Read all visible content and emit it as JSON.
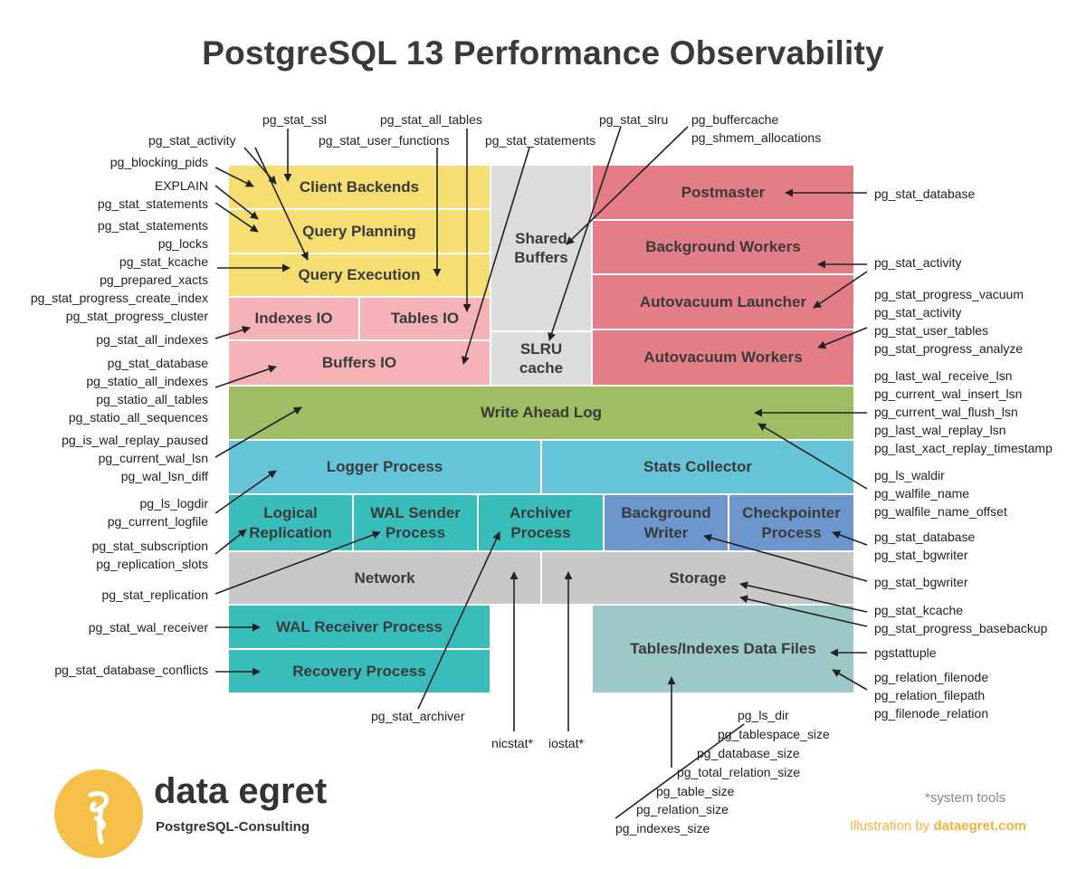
{
  "title": "PostgreSQL 13 Performance Observability",
  "colors": {
    "yellow": "#f6de73",
    "pink": "#f5b3b8",
    "light_gray": "#dcdcdc",
    "red": "#e47e86",
    "green": "#9dbe63",
    "light_blue": "#66c4d8",
    "teal": "#39bdbb",
    "blue": "#6d97cc",
    "gray": "#c8c8c8",
    "sea": "#9cc8c8",
    "logo": "#f5c04a",
    "credit": "#f0b43c"
  },
  "components": {
    "client_backends": "Client Backends",
    "query_planning": "Query Planning",
    "query_execution": "Query Execution",
    "indexes_io": "Indexes IO",
    "tables_io": "Tables IO",
    "buffers_io": "Buffers IO",
    "shared_buffers": "Shared\nBuffers",
    "slru_cache": "SLRU\ncache",
    "postmaster": "Postmaster",
    "background_workers": "Background Workers",
    "autovacuum_launcher": "Autovacuum Launcher",
    "autovacuum_workers": "Autovacuum Workers",
    "write_ahead_log": "Write Ahead Log",
    "logger_process": "Logger Process",
    "stats_collector": "Stats Collector",
    "logical_replication": "Logical\nReplication",
    "wal_sender_process": "WAL Sender\nProcess",
    "archiver_process": "Archiver\nProcess",
    "background_writer": "Background\nWriter",
    "checkpointer_process": "Checkpointer\nProcess",
    "network": "Network",
    "storage": "Storage",
    "wal_receiver_process": "WAL Receiver Process",
    "recovery_process": "Recovery Process",
    "data_files": "Tables/Indexes Data Files"
  },
  "labels": {
    "top": {
      "pg_stat_ssl": "pg_stat_ssl",
      "pg_stat_all_tables": "pg_stat_all_tables",
      "pg_stat_user_functions": "pg_stat_user_functions",
      "pg_stat_statements": "pg_stat_statements",
      "pg_stat_slru": "pg_stat_slru",
      "pg_buffercache": "pg_buffercache",
      "pg_shmem_allocations": "pg_shmem_allocations",
      "pg_stat_activity": "pg_stat_activity"
    },
    "left": {
      "pg_blocking_pids": "pg_blocking_pids",
      "explain": "EXPLAIN",
      "pg_stat_statements_a": "pg_stat_statements",
      "pg_stat_statements_b": "pg_stat_statements",
      "pg_locks": "pg_locks",
      "pg_stat_kcache": "pg_stat_kcache",
      "pg_prepared_xacts": "pg_prepared_xacts",
      "pg_stat_progress_create_index": "pg_stat_progress_create_index",
      "pg_stat_progress_cluster": "pg_stat_progress_cluster",
      "pg_stat_all_indexes": "pg_stat_all_indexes",
      "pg_stat_database": "pg_stat_database",
      "pg_statio_all_indexes": "pg_statio_all_indexes",
      "pg_statio_all_tables": "pg_statio_all_tables",
      "pg_statio_all_sequences": "pg_statio_all_sequences",
      "pg_is_wal_replay_paused": "pg_is_wal_replay_paused",
      "pg_current_wal_lsn": "pg_current_wal_lsn",
      "pg_wal_lsn_diff": "pg_wal_lsn_diff",
      "pg_ls_logdir": "pg_ls_logdir",
      "pg_current_logfile": "pg_current_logfile",
      "pg_stat_subscription": "pg_stat_subscription",
      "pg_replication_slots": "pg_replication_slots",
      "pg_stat_replication": "pg_stat_replication",
      "pg_stat_wal_receiver": "pg_stat_wal_receiver",
      "pg_stat_database_conflicts": "pg_stat_database_conflicts"
    },
    "right": {
      "pg_stat_database": "pg_stat_database",
      "pg_stat_activity": "pg_stat_activity",
      "pg_stat_progress_vacuum": "pg_stat_progress_vacuum",
      "pg_stat_activity_2": "pg_stat_activity",
      "pg_stat_user_tables": "pg_stat_user_tables",
      "pg_stat_progress_analyze": "pg_stat_progress_analyze",
      "pg_last_wal_receive_lsn": "pg_last_wal_receive_lsn",
      "pg_current_wal_insert_lsn": "pg_current_wal_insert_lsn",
      "pg_current_wal_flush_lsn": "pg_current_wal_flush_lsn",
      "pg_last_wal_replay_lsn": "pg_last_wal_replay_lsn",
      "pg_last_xact_replay_timestamp": "pg_last_xact_replay_timestamp",
      "pg_ls_waldir": "pg_ls_waldir",
      "pg_walfile_name": "pg_walfile_name",
      "pg_walfile_name_offset": "pg_walfile_name_offset",
      "pg_stat_database_2": "pg_stat_database",
      "pg_stat_bgwriter": "pg_stat_bgwriter",
      "pg_stat_bgwriter_2": "pg_stat_bgwriter",
      "pg_stat_kcache": "pg_stat_kcache",
      "pg_stat_progress_basebackup": "pg_stat_progress_basebackup",
      "pgstattuple": "pgstattuple",
      "pg_relation_filenode": "pg_relation_filenode",
      "pg_relation_filepath": "pg_relation_filepath",
      "pg_filenode_relation": "pg_filenode_relation"
    },
    "bottom": {
      "pg_stat_archiver": "pg_stat_archiver",
      "nicstat": "nicstat*",
      "iostat": "iostat*",
      "pg_ls_dir": "pg_ls_dir",
      "pg_tablespace_size": "pg_tablespace_size",
      "pg_database_size": "pg_database_size",
      "pg_total_relation_size": "pg_total_relation_size",
      "pg_table_size": "pg_table_size",
      "pg_relation_size": "pg_relation_size",
      "pg_indexes_size": "pg_indexes_size"
    }
  },
  "footer": {
    "logo_name": "data egret",
    "logo_sub": "PostgreSQL-Consulting",
    "system_tools": "*system tools",
    "credit_prefix": "Illustration by ",
    "credit_site": "dataegret.com"
  }
}
